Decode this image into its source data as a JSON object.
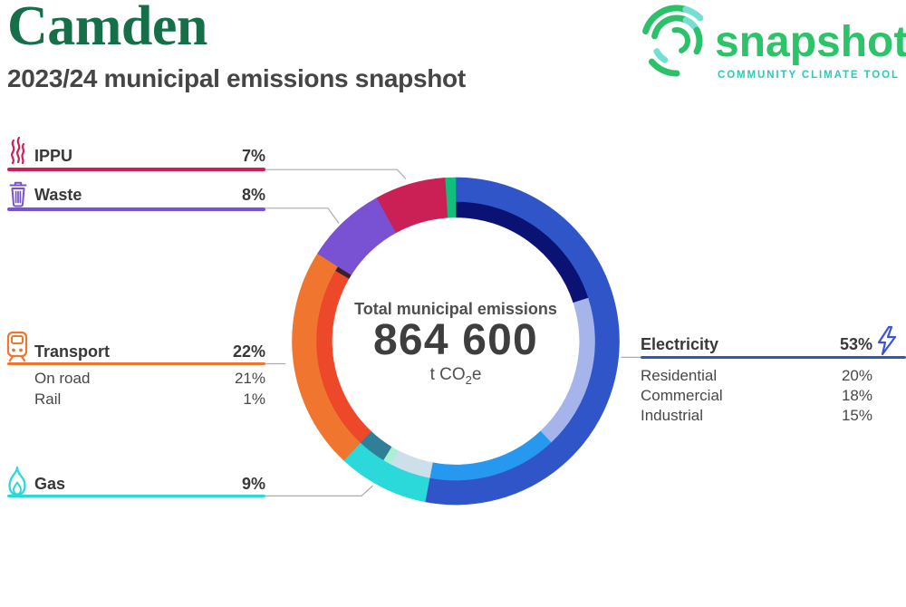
{
  "header": {
    "municipality": "Camden",
    "subtitle": "2023/24 municipal emissions snapshot"
  },
  "logo": {
    "wordmark": "snapshot",
    "tagline": "COMMUNITY CLIMATE TOOL",
    "green": "#2BC168",
    "teal": "#2EC9B2",
    "arc_teal": "#74DFD2"
  },
  "center": {
    "label": "Total municipal emissions",
    "value": "864 600",
    "unit_prefix": "t CO",
    "unit_sub": "2",
    "unit_suffix": "e"
  },
  "chart_data": {
    "type": "donut",
    "title": "Total municipal emissions",
    "total_value": "864 600",
    "unit": "t CO2e",
    "categories": [
      {
        "label": "Electricity",
        "pct": 53,
        "color": "#2F55C9",
        "subs": [
          {
            "label": "Residential",
            "pct": 20,
            "color": "#0A1273"
          },
          {
            "label": "Commercial",
            "pct": 18,
            "color": "#A5B5EB"
          },
          {
            "label": "Industrial",
            "pct": 15,
            "color": "#2798F0"
          }
        ]
      },
      {
        "label": "Gas",
        "pct": 9,
        "color": "#2BD8DA",
        "subs": [
          {
            "label": "",
            "pct": 4.7,
            "color": "#CDDFE8"
          },
          {
            "label": "",
            "pct": 1.0,
            "color": "#ABF0D5"
          },
          {
            "label": "",
            "pct": 3.3,
            "color": "#2E7F97"
          }
        ]
      },
      {
        "label": "Transport",
        "pct": 22,
        "color": "#F0762F",
        "subs": [
          {
            "label": "On road",
            "pct": 21,
            "arc_pct": 21.45,
            "color": "#EC4829"
          },
          {
            "label": "Rail",
            "pct": 1,
            "arc_pct": 0.55,
            "color": "#3A2028"
          }
        ]
      },
      {
        "label": "Waste",
        "pct": 8,
        "color": "#7852D2",
        "subs": []
      },
      {
        "label": "IPPU",
        "pct": 7,
        "color": "#CB2055",
        "subs": []
      },
      {
        "label": "",
        "pct": 1,
        "color": "#12BE7B",
        "subs": []
      }
    ]
  },
  "legend_left": {
    "ippu": {
      "label": "IPPU",
      "pct": "7%"
    },
    "waste": {
      "label": "Waste",
      "pct": "8%"
    },
    "transport": {
      "label": "Transport",
      "pct": "22%",
      "rows": [
        {
          "label": "On road",
          "pct": "21%"
        },
        {
          "label": "Rail",
          "pct": "1%"
        }
      ]
    },
    "gas": {
      "label": "Gas",
      "pct": "9%"
    }
  },
  "legend_right": {
    "electricity": {
      "label": "Electricity",
      "pct": "53%",
      "rows": [
        {
          "label": "Residential",
          "pct": "20%"
        },
        {
          "label": "Commercial",
          "pct": "18%"
        },
        {
          "label": "Industrial",
          "pct": "15%"
        }
      ]
    }
  }
}
